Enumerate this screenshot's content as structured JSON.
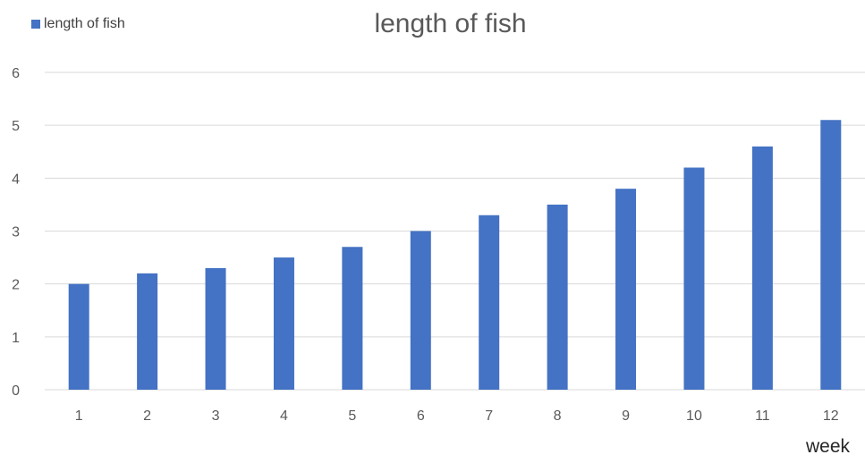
{
  "chart_data": {
    "type": "bar",
    "title": "length of fish",
    "xlabel": "week",
    "ylabel": "",
    "categories": [
      "1",
      "2",
      "3",
      "4",
      "5",
      "6",
      "7",
      "8",
      "9",
      "10",
      "11",
      "12"
    ],
    "series": [
      {
        "name": "length of fish",
        "values": [
          2.0,
          2.2,
          2.3,
          2.5,
          2.7,
          3.0,
          3.3,
          3.5,
          3.8,
          4.2,
          4.6,
          5.1
        ]
      }
    ],
    "ylim": [
      0,
      6
    ],
    "yticks": [
      "0",
      "1",
      "2",
      "3",
      "4",
      "5",
      "6"
    ],
    "grid": true,
    "legend_position": "top-left",
    "bar_color": "#4472c4",
    "gridline_color": "#d9d9d9"
  }
}
